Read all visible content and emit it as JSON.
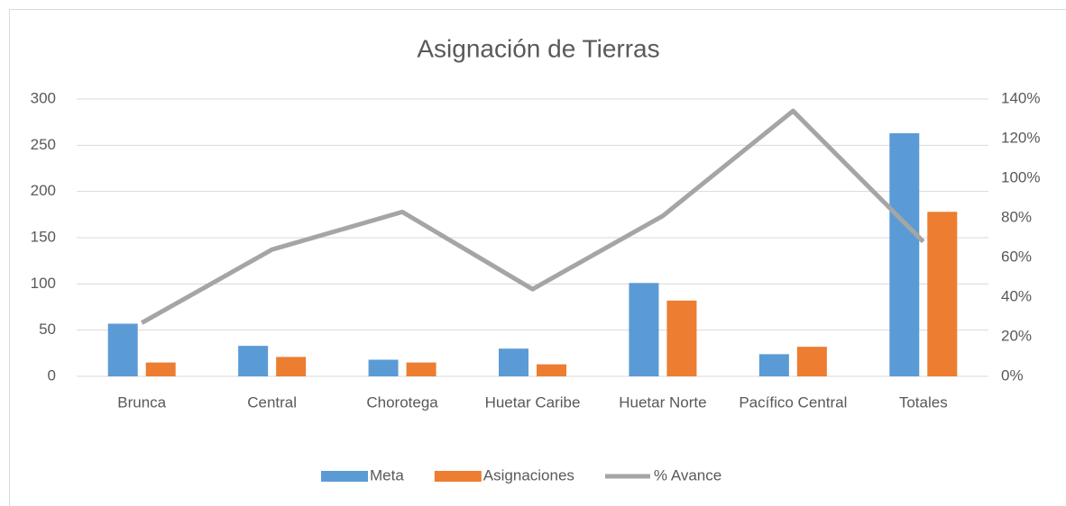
{
  "chart_data": {
    "type": "bar",
    "title": "Asignación de Tierras",
    "categories": [
      "Brunca",
      "Central",
      "Chorotega",
      "Huetar Caribe",
      "Huetar Norte",
      "Pacífico Central",
      "Totales"
    ],
    "series": [
      {
        "name": "Meta",
        "color": "#5b9bd5",
        "values": [
          57,
          33,
          18,
          30,
          101,
          24,
          263
        ]
      },
      {
        "name": "Asignaciones",
        "color": "#ed7d31",
        "values": [
          15,
          21,
          15,
          13,
          82,
          32,
          178
        ]
      },
      {
        "name": "% Avance",
        "color": "#a5a5a5",
        "type": "line",
        "axis": "y2",
        "values": [
          27,
          64,
          83,
          44,
          81,
          134,
          68
        ]
      }
    ],
    "ylim": [
      0,
      300
    ],
    "yticks": [
      0,
      50,
      100,
      150,
      200,
      250,
      300
    ],
    "y2lim": [
      0,
      140
    ],
    "y2ticks": [
      {
        "value": 0,
        "label": "0%"
      },
      {
        "value": 20,
        "label": "20%"
      },
      {
        "value": 40,
        "label": "40%"
      },
      {
        "value": 60,
        "label": "60%"
      },
      {
        "value": 80,
        "label": "80%"
      },
      {
        "value": 100,
        "label": "100%"
      },
      {
        "value": 120,
        "label": "120%"
      },
      {
        "value": 140,
        "label": "140%"
      }
    ],
    "grid": true,
    "legend": "bottom"
  }
}
